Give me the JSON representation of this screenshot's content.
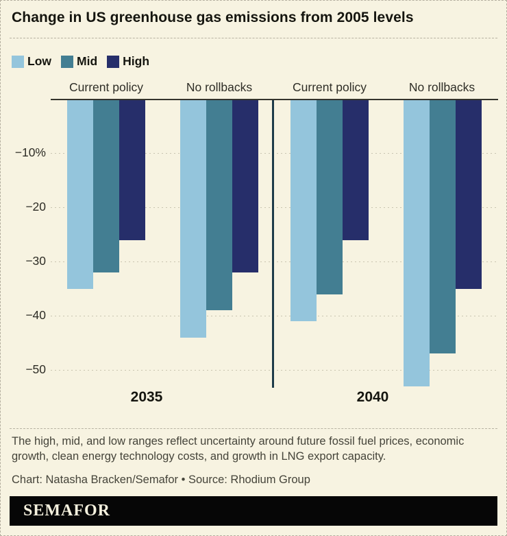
{
  "title": "Change in US greenhouse gas emissions from 2005 levels",
  "legend": [
    {
      "label": "Low",
      "color": "#94c5dc"
    },
    {
      "label": "Mid",
      "color": "#437e92"
    },
    {
      "label": "High",
      "color": "#262e6a"
    }
  ],
  "chart_data": {
    "type": "bar",
    "title": "Change in US greenhouse gas emissions from 2005 levels",
    "unit": "% change from 2005 levels",
    "ylim": [
      -55,
      0
    ],
    "yticks": [
      {
        "value": -10,
        "label": "−10%"
      },
      {
        "value": -20,
        "label": "−20"
      },
      {
        "value": -30,
        "label": "−30"
      },
      {
        "value": -40,
        "label": "−40"
      },
      {
        "value": -50,
        "label": "−50"
      }
    ],
    "grid": "horizontal-dotted",
    "legend_position": "top-left",
    "series_names": [
      "Low",
      "Mid",
      "High"
    ],
    "series_colors": {
      "Low": "#94c5dc",
      "Mid": "#437e92",
      "High": "#262e6a"
    },
    "groups": [
      {
        "year": "2035",
        "policy": "Current policy",
        "values": {
          "Low": -35,
          "Mid": -32,
          "High": -26
        }
      },
      {
        "year": "2035",
        "policy": "No rollbacks",
        "values": {
          "Low": -44,
          "Mid": -39,
          "High": -32
        }
      },
      {
        "year": "2040",
        "policy": "Current policy",
        "values": {
          "Low": -41,
          "Mid": -36,
          "High": -26
        }
      },
      {
        "year": "2040",
        "policy": "No rollbacks",
        "values": {
          "Low": -53,
          "Mid": -47,
          "High": -35
        }
      }
    ],
    "x_axis_labels": [
      "2035",
      "2040"
    ]
  },
  "footnote": "The high, mid, and low ranges reflect uncertainty around future fossil fuel prices, economic growth, clean energy technology costs, and growth in LNG export capacity.",
  "credit": "Chart: Natasha Bracken/Semafor • Source: Rhodium Group",
  "logo": "SEMAFOR",
  "colors": {
    "background": "#f7f3e1",
    "axis_baseline": "#34332c",
    "year_divider": "#1d3b49",
    "gridline": "#c9c4b0",
    "text": "#2e2d26",
    "footnote_text": "#45443a",
    "logo_bar": "#060606",
    "logo_text": "#f5f1de"
  }
}
